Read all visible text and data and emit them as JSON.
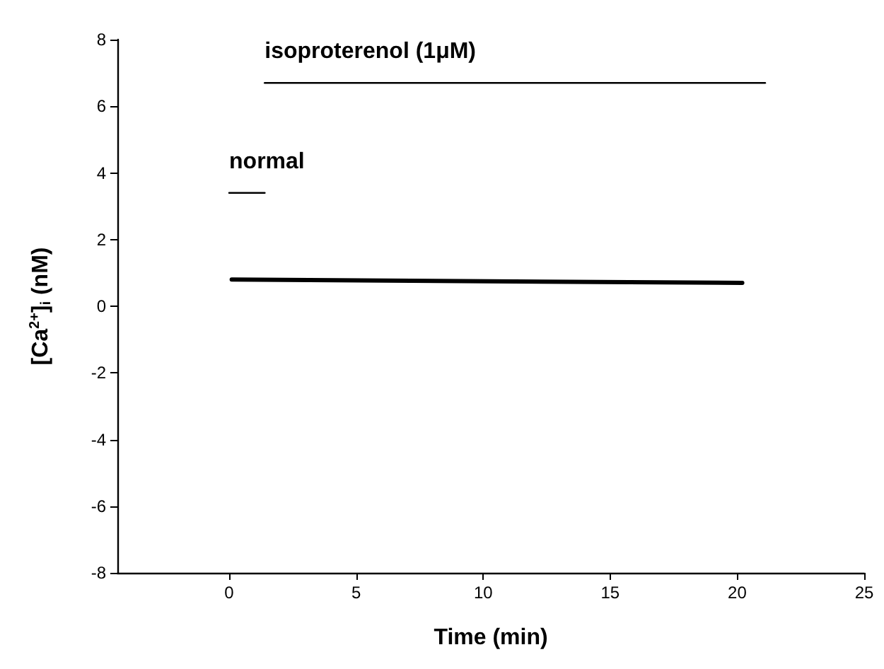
{
  "chart_data": {
    "type": "line",
    "xlabel": "Time (min)",
    "ylabel": "[Ca$^{2+}$]$_{i}$ (nM)",
    "xlim": [
      -4.4,
      25
    ],
    "xticks": [
      0,
      5,
      10,
      15,
      20,
      25
    ],
    "ylim": [
      -8,
      8
    ],
    "yticks": [
      -8,
      -6,
      -4,
      -2,
      0,
      2,
      4,
      6,
      8
    ],
    "grid": false,
    "legend": false,
    "marker": "none",
    "line_style": "solid",
    "series": [
      {
        "name": "isoproterenol (1μM)",
        "color": "#000000",
        "x": [
          1.4,
          21.1
        ],
        "values": [
          6.7,
          6.7
        ]
      },
      {
        "name": "normal",
        "color": "#000000",
        "x": [
          0,
          1.4
        ],
        "values": [
          3.4,
          3.4
        ]
      },
      {
        "color": "#000000",
        "x": [
          0.1,
          20.2
        ],
        "values": [
          0.8,
          0.7
        ]
      }
    ]
  }
}
